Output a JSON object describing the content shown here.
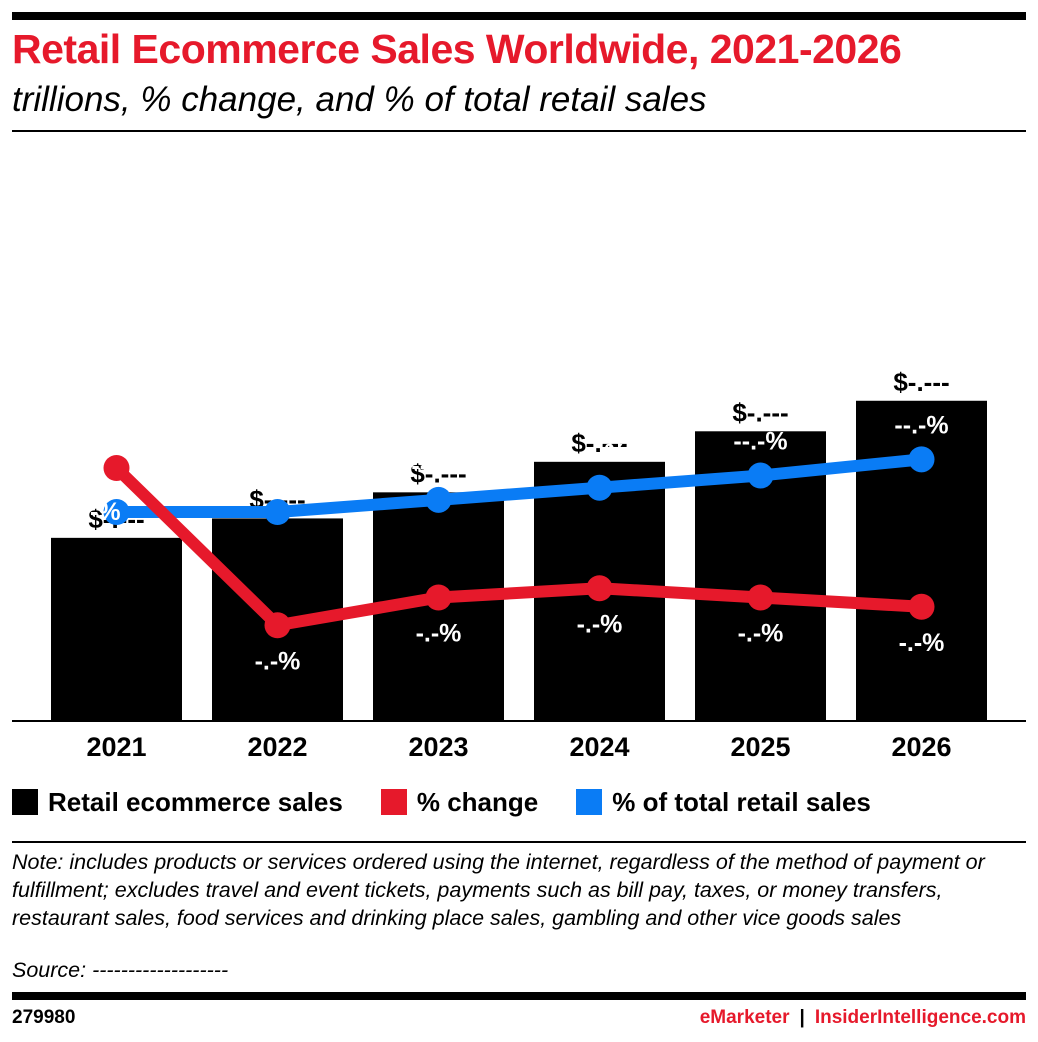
{
  "header": {
    "title": "Retail Ecommerce Sales Worldwide, 2021-2026",
    "subtitle": "trillions, % change, and % of total retail sales"
  },
  "colors": {
    "accent_red": "#e6192b",
    "bar": "#000000",
    "change_line": "#e6192b",
    "share_line": "#0a7cf5",
    "label_on_bar": "#ffffff"
  },
  "chart_data": {
    "type": "bar",
    "categories": [
      "2021",
      "2022",
      "2023",
      "2024",
      "2025",
      "2026"
    ],
    "series": [
      {
        "name": "Retail ecommerce sales",
        "type": "bar",
        "values": [
          4.9,
          5.25,
          5.72,
          6.27,
          6.82,
          7.37
        ],
        "data_labels": [
          "$-.---",
          "$-.---",
          "$-.---",
          "$-.---",
          "$-.---",
          "$-.---"
        ]
      },
      {
        "name": "% change",
        "type": "line",
        "values": [
          24.0,
          7.0,
          10.0,
          11.0,
          10.0,
          9.0
        ],
        "data_labels": [
          "--.-%",
          "-.-%",
          "-.-%",
          "-.-%",
          "-.-%",
          "-.-%"
        ]
      },
      {
        "name": "% of total retail sales",
        "type": "line",
        "values": [
          28.0,
          28.0,
          29.5,
          31.0,
          32.5,
          34.5
        ],
        "data_labels": [
          "--.-%",
          "--.-%",
          "--.-%",
          "--.-%",
          "--.-%",
          "--.-%"
        ]
      }
    ],
    "legend": "bottom",
    "grid": false
  },
  "legend": [
    {
      "label": "Retail ecommerce sales",
      "color": "#000000"
    },
    {
      "label": "% change",
      "color": "#e6192b"
    },
    {
      "label": "% of total retail sales",
      "color": "#0a7cf5"
    }
  ],
  "footer": {
    "note": "Note: includes products or services ordered using the internet, regardless of the method of payment or fulfillment; excludes travel and event tickets, payments such as bill pay, taxes, or money transfers, restaurant sales, food services and drinking place sales, gambling and other vice goods sales",
    "source": "Source: -------------------",
    "chart_id": "279980",
    "brand_left": "eMarketer",
    "brand_sep": "|",
    "brand_right": "InsiderIntelligence.com"
  }
}
